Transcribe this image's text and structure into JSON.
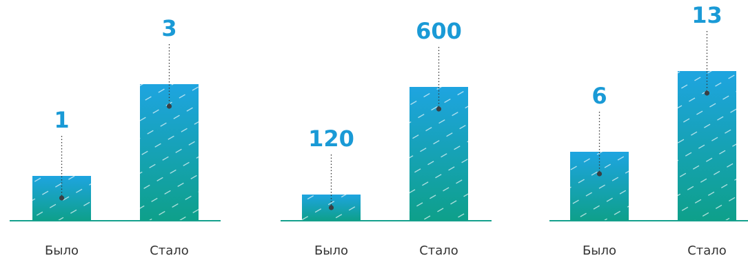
{
  "chart_data": [
    {
      "type": "bar",
      "categories": [
        "Было",
        "Стало"
      ],
      "values": [
        1,
        3
      ],
      "value_labels": [
        "1",
        "3"
      ]
    },
    {
      "type": "bar",
      "categories": [
        "Было",
        "Стало"
      ],
      "values": [
        120,
        600
      ],
      "value_labels": [
        "120",
        "600"
      ]
    },
    {
      "type": "bar",
      "categories": [
        "Было",
        "Стало"
      ],
      "values": [
        6,
        13
      ],
      "value_labels": [
        "6",
        "13"
      ]
    }
  ],
  "colors": {
    "bar_top": "#1ea4e0",
    "bar_bottom": "#0ea08a",
    "baseline": "#13a08c",
    "value_text": "#1a9ad6",
    "category_text": "#333333",
    "leader": "#333333"
  }
}
